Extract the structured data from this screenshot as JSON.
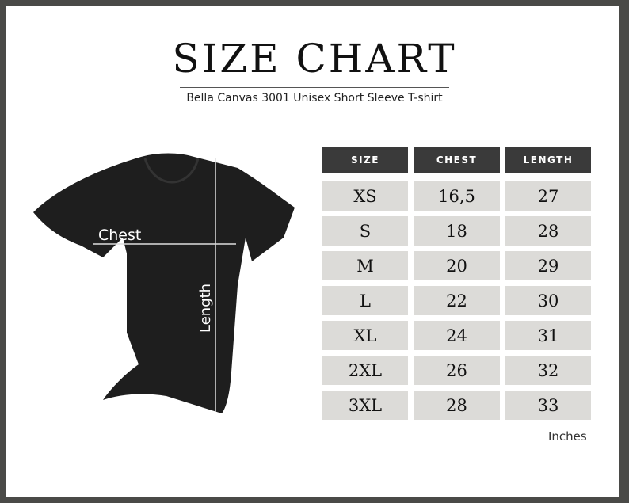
{
  "title": "SIZE CHART",
  "subtitle": "Bella Canvas 3001 Unisex Short Sleeve T-shirt",
  "illustration": {
    "chest_label": "Chest",
    "length_label": "Length"
  },
  "table": {
    "headers": [
      "SIZE",
      "CHEST",
      "LENGTH"
    ],
    "rows": [
      [
        "XS",
        "16,5",
        "27"
      ],
      [
        "S",
        "18",
        "28"
      ],
      [
        "M",
        "20",
        "29"
      ],
      [
        "L",
        "22",
        "30"
      ],
      [
        "XL",
        "24",
        "31"
      ],
      [
        "2XL",
        "26",
        "32"
      ],
      [
        "3XL",
        "28",
        "33"
      ]
    ]
  },
  "units": "Inches",
  "colors": {
    "frame": "#4a4a47",
    "header": "#3a3a3a",
    "cell": "#dcdbd8",
    "shirt": "#1e1e1e"
  }
}
